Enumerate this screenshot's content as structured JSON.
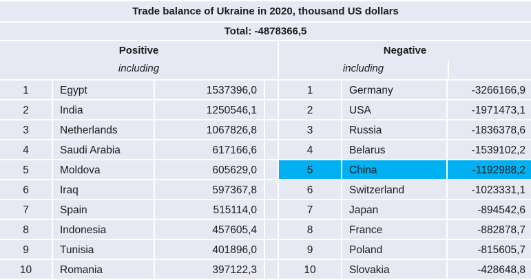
{
  "title": "Trade balance of Ukraine in 2020, thousand US dollars",
  "total": "Total: -4878366,5",
  "positive": {
    "heading": "Positive",
    "subheading": "including",
    "rows": [
      {
        "rank": "1",
        "country": "Egypt",
        "value": "1537396,0"
      },
      {
        "rank": "2",
        "country": "India",
        "value": "1250546,1"
      },
      {
        "rank": "3",
        "country": "Netherlands",
        "value": "1067826,8"
      },
      {
        "rank": "4",
        "country": "Saudi Arabia",
        "value": "617166,6"
      },
      {
        "rank": "5",
        "country": "Moldova",
        "value": "605629,0"
      },
      {
        "rank": "6",
        "country": "Iraq",
        "value": "597367,8"
      },
      {
        "rank": "7",
        "country": "Spain",
        "value": "515114,0"
      },
      {
        "rank": "8",
        "country": "Indonesia",
        "value": "457605,4"
      },
      {
        "rank": "9",
        "country": "Tunisia",
        "value": "401896,0"
      },
      {
        "rank": "10",
        "country": "Romania",
        "value": "397122,3"
      }
    ]
  },
  "negative": {
    "heading": "Negative",
    "subheading": "including",
    "highlighted_rank": "5",
    "highlight_color": "#00b0f0",
    "rows": [
      {
        "rank": "1",
        "country": "Germany",
        "value": "-3266166,9"
      },
      {
        "rank": "2",
        "country": "USA",
        "value": "-1971473,1"
      },
      {
        "rank": "3",
        "country": "Russia",
        "value": "-1836378,6"
      },
      {
        "rank": "4",
        "country": "Belarus",
        "value": "-1539102,2"
      },
      {
        "rank": "5",
        "country": "China",
        "value": "-1192988,2"
      },
      {
        "rank": "6",
        "country": "Switzerland",
        "value": "-1023331,1"
      },
      {
        "rank": "7",
        "country": "Japan",
        "value": "-894542,6"
      },
      {
        "rank": "8",
        "country": "France",
        "value": "-882878,7"
      },
      {
        "rank": "9",
        "country": "Poland",
        "value": "-815605,7"
      },
      {
        "rank": "10",
        "country": "Slovakia",
        "value": "-428648,8"
      }
    ]
  }
}
